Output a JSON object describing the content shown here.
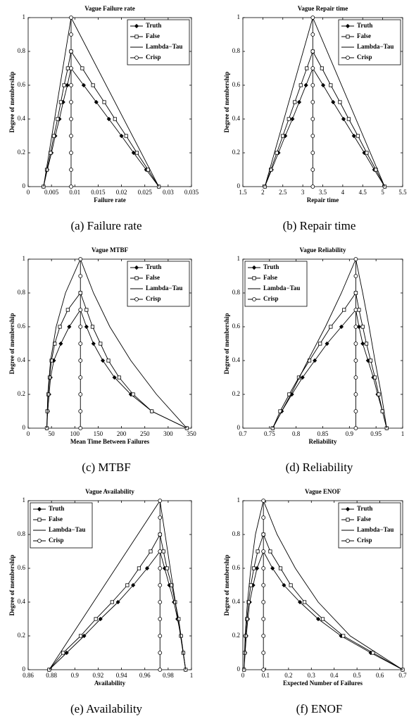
{
  "chart_data": [
    {
      "type": "line",
      "title": "Vague Failure rate",
      "xlabel": "Failure rate",
      "ylabel": "Degree of membership",
      "caption": "(a) Failure rate",
      "legend": "upper right",
      "xlim": [
        0,
        0.035
      ],
      "xticks": [
        0,
        0.005,
        0.01,
        0.015,
        0.02,
        0.025,
        0.03,
        0.035
      ],
      "ylim": [
        0,
        1
      ],
      "yticks": [
        0,
        0.2,
        0.4,
        0.6,
        0.8,
        1
      ],
      "series": [
        {
          "name": "Truth",
          "color": "#000000",
          "marker": "diamond",
          "x": [
            0.0033,
            0.0041,
            0.005,
            0.0058,
            0.0067,
            0.0075,
            0.0084,
            0.0092,
            0.0119,
            0.0146,
            0.0173,
            0.02,
            0.0226,
            0.0253,
            0.028
          ],
          "y": [
            0,
            0.1,
            0.2,
            0.3,
            0.4,
            0.5,
            0.6,
            0.7,
            0.6,
            0.5,
            0.4,
            0.3,
            0.2,
            0.1,
            0
          ]
        },
        {
          "name": "False",
          "color": "#000000",
          "marker": "square",
          "x": [
            0.0033,
            0.004,
            0.0048,
            0.0055,
            0.0063,
            0.007,
            0.0077,
            0.0085,
            0.0092,
            0.0116,
            0.0139,
            0.0163,
            0.0186,
            0.021,
            0.0233,
            0.0257,
            0.028
          ],
          "y": [
            0,
            0.1,
            0.2,
            0.3,
            0.4,
            0.5,
            0.6,
            0.7,
            0.8,
            0.7,
            0.6,
            0.5,
            0.4,
            0.3,
            0.2,
            0.1,
            0
          ]
        },
        {
          "name": "Lambda−Tau",
          "color": "#000000",
          "marker": "none",
          "x": [
            0.0033,
            0.0092,
            0.028
          ],
          "y": [
            0,
            1,
            0
          ]
        },
        {
          "name": "Crisp",
          "color": "#000000",
          "marker": "circle",
          "x": [
            0.0092,
            0.0092,
            0.0092,
            0.0092,
            0.0092,
            0.0092,
            0.0092,
            0.0092,
            0.0092,
            0.0092,
            0.0092
          ],
          "y": [
            0,
            0.1,
            0.2,
            0.3,
            0.4,
            0.5,
            0.6,
            0.7,
            0.8,
            0.9,
            1
          ]
        }
      ]
    },
    {
      "type": "line",
      "title": "Vague Repair time",
      "xlabel": "Repair time",
      "ylabel": "Degree of membership",
      "caption": "(b) Repair time",
      "legend": "upper right",
      "xlim": [
        1.5,
        5.5
      ],
      "xticks": [
        1.5,
        2,
        2.5,
        3,
        3.5,
        4,
        4.5,
        5,
        5.5
      ],
      "ylim": [
        0,
        1
      ],
      "yticks": [
        0,
        0.2,
        0.4,
        0.6,
        0.8,
        1
      ],
      "series": [
        {
          "name": "Truth",
          "color": "#000000",
          "marker": "diamond",
          "x": [
            2.05,
            2.22,
            2.39,
            2.56,
            2.74,
            2.91,
            3.08,
            3.25,
            3.51,
            3.76,
            4.02,
            4.28,
            4.54,
            4.79,
            5.05
          ],
          "y": [
            0,
            0.1,
            0.2,
            0.3,
            0.4,
            0.5,
            0.6,
            0.7,
            0.6,
            0.5,
            0.4,
            0.3,
            0.2,
            0.1,
            0
          ]
        },
        {
          "name": "False",
          "color": "#000000",
          "marker": "square",
          "x": [
            2.05,
            2.2,
            2.35,
            2.5,
            2.65,
            2.8,
            2.95,
            3.1,
            3.25,
            3.48,
            3.7,
            3.93,
            4.15,
            4.38,
            4.6,
            4.83,
            5.05
          ],
          "y": [
            0,
            0.1,
            0.2,
            0.3,
            0.4,
            0.5,
            0.6,
            0.7,
            0.8,
            0.7,
            0.6,
            0.5,
            0.4,
            0.3,
            0.2,
            0.1,
            0
          ]
        },
        {
          "name": "Lambda−Tau",
          "color": "#000000",
          "marker": "none",
          "x": [
            2.05,
            3.25,
            5.05
          ],
          "y": [
            0,
            1,
            0
          ]
        },
        {
          "name": "Crisp",
          "color": "#000000",
          "marker": "circle",
          "x": [
            3.25,
            3.25,
            3.25,
            3.25,
            3.25,
            3.25,
            3.25,
            3.25,
            3.25,
            3.25,
            3.25
          ],
          "y": [
            0,
            0.1,
            0.2,
            0.3,
            0.4,
            0.5,
            0.6,
            0.7,
            0.8,
            0.9,
            1
          ]
        }
      ]
    },
    {
      "type": "line",
      "title": "Vague MTBF",
      "xlabel": "Mean Time Between Failures",
      "ylabel": "Degree of membership",
      "caption": "(c) MTBF",
      "legend": "upper right",
      "xlim": [
        0,
        350
      ],
      "xticks": [
        0,
        50,
        100,
        150,
        200,
        250,
        300,
        350
      ],
      "ylim": [
        0,
        1
      ],
      "yticks": [
        0,
        0.2,
        0.4,
        0.6,
        0.8,
        1
      ],
      "series": [
        {
          "name": "Truth",
          "color": "#000000",
          "marker": "diamond",
          "x": [
            40,
            42,
            45,
            48,
            55,
            70,
            88,
            112,
            125,
            140,
            160,
            185,
            220,
            265,
            340
          ],
          "y": [
            0,
            0.1,
            0.2,
            0.3,
            0.4,
            0.5,
            0.6,
            0.7,
            0.6,
            0.5,
            0.4,
            0.3,
            0.2,
            0.1,
            0
          ]
        },
        {
          "name": "False",
          "color": "#000000",
          "marker": "square",
          "x": [
            40,
            41,
            43,
            46,
            50,
            57,
            68,
            85,
            112,
            125,
            138,
            155,
            172,
            195,
            225,
            265,
            340
          ],
          "y": [
            0,
            0.1,
            0.2,
            0.3,
            0.4,
            0.5,
            0.6,
            0.7,
            0.8,
            0.7,
            0.6,
            0.5,
            0.4,
            0.3,
            0.2,
            0.1,
            0
          ]
        },
        {
          "name": "Lambda−Tau",
          "color": "#000000",
          "marker": "none",
          "x": [
            40,
            42,
            48,
            60,
            80,
            112,
            140,
            175,
            220,
            275,
            340
          ],
          "y": [
            0,
            0.2,
            0.4,
            0.6,
            0.8,
            1,
            0.8,
            0.6,
            0.4,
            0.2,
            0
          ]
        },
        {
          "name": "Crisp",
          "color": "#000000",
          "marker": "circle",
          "x": [
            112,
            112,
            112,
            112,
            112,
            112,
            112,
            112,
            112,
            112,
            112
          ],
          "y": [
            0,
            0.1,
            0.2,
            0.3,
            0.4,
            0.5,
            0.6,
            0.7,
            0.8,
            0.9,
            1
          ]
        }
      ]
    },
    {
      "type": "line",
      "title": "Vague Reliability",
      "xlabel": "Reliability",
      "ylabel": "Degree of membership",
      "caption": "(d) Reliability",
      "legend": "upper left",
      "xlim": [
        0.7,
        1
      ],
      "xticks": [
        0.7,
        0.75,
        0.8,
        0.85,
        0.9,
        0.95,
        1
      ],
      "ylim": [
        0,
        1
      ],
      "yticks": [
        0,
        0.2,
        0.4,
        0.6,
        0.8,
        1
      ],
      "series": [
        {
          "name": "Truth",
          "color": "#000000",
          "marker": "diamond",
          "x": [
            0.756,
            0.773,
            0.792,
            0.812,
            0.835,
            0.858,
            0.885,
            0.912,
            0.918,
            0.925,
            0.935,
            0.945,
            0.953,
            0.962,
            0.97
          ],
          "y": [
            0,
            0.1,
            0.2,
            0.3,
            0.4,
            0.5,
            0.6,
            0.7,
            0.6,
            0.5,
            0.4,
            0.3,
            0.2,
            0.1,
            0
          ]
        },
        {
          "name": "False",
          "color": "#000000",
          "marker": "square",
          "x": [
            0.756,
            0.77,
            0.787,
            0.805,
            0.825,
            0.845,
            0.865,
            0.89,
            0.912,
            0.918,
            0.925,
            0.932,
            0.94,
            0.948,
            0.955,
            0.962,
            0.97
          ],
          "y": [
            0,
            0.1,
            0.2,
            0.3,
            0.4,
            0.5,
            0.6,
            0.7,
            0.8,
            0.7,
            0.6,
            0.5,
            0.4,
            0.3,
            0.2,
            0.1,
            0
          ]
        },
        {
          "name": "Lambda−Tau",
          "color": "#000000",
          "marker": "none",
          "x": [
            0.756,
            0.79,
            0.822,
            0.855,
            0.885,
            0.912,
            0.925,
            0.937,
            0.948,
            0.96,
            0.97
          ],
          "y": [
            0,
            0.2,
            0.4,
            0.6,
            0.8,
            1,
            0.8,
            0.6,
            0.4,
            0.2,
            0
          ]
        },
        {
          "name": "Crisp",
          "color": "#000000",
          "marker": "circle",
          "x": [
            0.912,
            0.912,
            0.912,
            0.912,
            0.912,
            0.912,
            0.912,
            0.912,
            0.912,
            0.912,
            0.912
          ],
          "y": [
            0,
            0.1,
            0.2,
            0.3,
            0.4,
            0.5,
            0.6,
            0.7,
            0.8,
            0.9,
            1
          ]
        }
      ]
    },
    {
      "type": "line",
      "title": "Vague Availability",
      "xlabel": "Availability",
      "ylabel": "Degree of membership",
      "caption": "(e) Availability",
      "legend": "upper left",
      "xlim": [
        0.86,
        1
      ],
      "xticks": [
        0.86,
        0.88,
        0.9,
        0.92,
        0.94,
        0.96,
        0.98,
        1
      ],
      "ylim": [
        0,
        1
      ],
      "yticks": [
        0,
        0.2,
        0.4,
        0.6,
        0.8,
        1
      ],
      "series": [
        {
          "name": "Truth",
          "color": "#000000",
          "marker": "diamond",
          "x": [
            0.878,
            0.893,
            0.908,
            0.922,
            0.937,
            0.95,
            0.962,
            0.973,
            0.977,
            0.981,
            0.985,
            0.988,
            0.991,
            0.993,
            0.995
          ],
          "y": [
            0,
            0.1,
            0.2,
            0.3,
            0.4,
            0.5,
            0.6,
            0.7,
            0.6,
            0.5,
            0.4,
            0.3,
            0.2,
            0.1,
            0
          ]
        },
        {
          "name": "False",
          "color": "#000000",
          "marker": "square",
          "x": [
            0.878,
            0.89,
            0.905,
            0.918,
            0.932,
            0.945,
            0.955,
            0.965,
            0.973,
            0.976,
            0.979,
            0.983,
            0.986,
            0.989,
            0.991,
            0.993,
            0.995
          ],
          "y": [
            0,
            0.1,
            0.2,
            0.3,
            0.4,
            0.5,
            0.6,
            0.7,
            0.8,
            0.7,
            0.6,
            0.5,
            0.4,
            0.3,
            0.2,
            0.1,
            0
          ]
        },
        {
          "name": "Lambda−Tau",
          "color": "#000000",
          "marker": "none",
          "x": [
            0.878,
            0.973,
            0.995
          ],
          "y": [
            0,
            1,
            0
          ]
        },
        {
          "name": "Crisp",
          "color": "#000000",
          "marker": "circle",
          "x": [
            0.973,
            0.973,
            0.973,
            0.973,
            0.973,
            0.973,
            0.973,
            0.973,
            0.973,
            0.973,
            0.973
          ],
          "y": [
            0,
            0.1,
            0.2,
            0.3,
            0.4,
            0.5,
            0.6,
            0.7,
            0.8,
            0.9,
            1
          ]
        }
      ]
    },
    {
      "type": "line",
      "title": "Vague ENOF",
      "xlabel": "Expected Number of Failures",
      "ylabel": "Degree of membership",
      "caption": "(f) ENOF",
      "legend": "upper right",
      "xlim": [
        0,
        0.7
      ],
      "xticks": [
        0,
        0.1,
        0.2,
        0.3,
        0.4,
        0.5,
        0.6,
        0.7
      ],
      "ylim": [
        0,
        1
      ],
      "yticks": [
        0,
        0.2,
        0.4,
        0.6,
        0.8,
        1
      ],
      "series": [
        {
          "name": "Truth",
          "color": "#000000",
          "marker": "diamond",
          "x": [
            0.005,
            0.01,
            0.015,
            0.022,
            0.03,
            0.045,
            0.062,
            0.09,
            0.13,
            0.18,
            0.25,
            0.33,
            0.43,
            0.56,
            0.7
          ],
          "y": [
            0,
            0.1,
            0.2,
            0.3,
            0.4,
            0.5,
            0.6,
            0.7,
            0.6,
            0.5,
            0.4,
            0.3,
            0.2,
            0.1,
            0
          ]
        },
        {
          "name": "False",
          "color": "#000000",
          "marker": "square",
          "x": [
            0.005,
            0.008,
            0.012,
            0.018,
            0.025,
            0.035,
            0.048,
            0.065,
            0.09,
            0.12,
            0.165,
            0.21,
            0.27,
            0.35,
            0.44,
            0.57,
            0.7
          ],
          "y": [
            0,
            0.1,
            0.2,
            0.3,
            0.4,
            0.5,
            0.6,
            0.7,
            0.8,
            0.7,
            0.6,
            0.5,
            0.4,
            0.3,
            0.2,
            0.1,
            0
          ]
        },
        {
          "name": "Lambda−Tau",
          "color": "#000000",
          "marker": "none",
          "x": [
            0.005,
            0.01,
            0.02,
            0.035,
            0.055,
            0.09,
            0.15,
            0.23,
            0.33,
            0.47,
            0.7
          ],
          "y": [
            0,
            0.2,
            0.4,
            0.6,
            0.8,
            1,
            0.8,
            0.6,
            0.4,
            0.2,
            0
          ]
        },
        {
          "name": "Crisp",
          "color": "#000000",
          "marker": "circle",
          "x": [
            0.09,
            0.09,
            0.09,
            0.09,
            0.09,
            0.09,
            0.09,
            0.09,
            0.09,
            0.09,
            0.09
          ],
          "y": [
            0,
            0.1,
            0.2,
            0.3,
            0.4,
            0.5,
            0.6,
            0.7,
            0.8,
            0.9,
            1
          ]
        }
      ]
    }
  ]
}
